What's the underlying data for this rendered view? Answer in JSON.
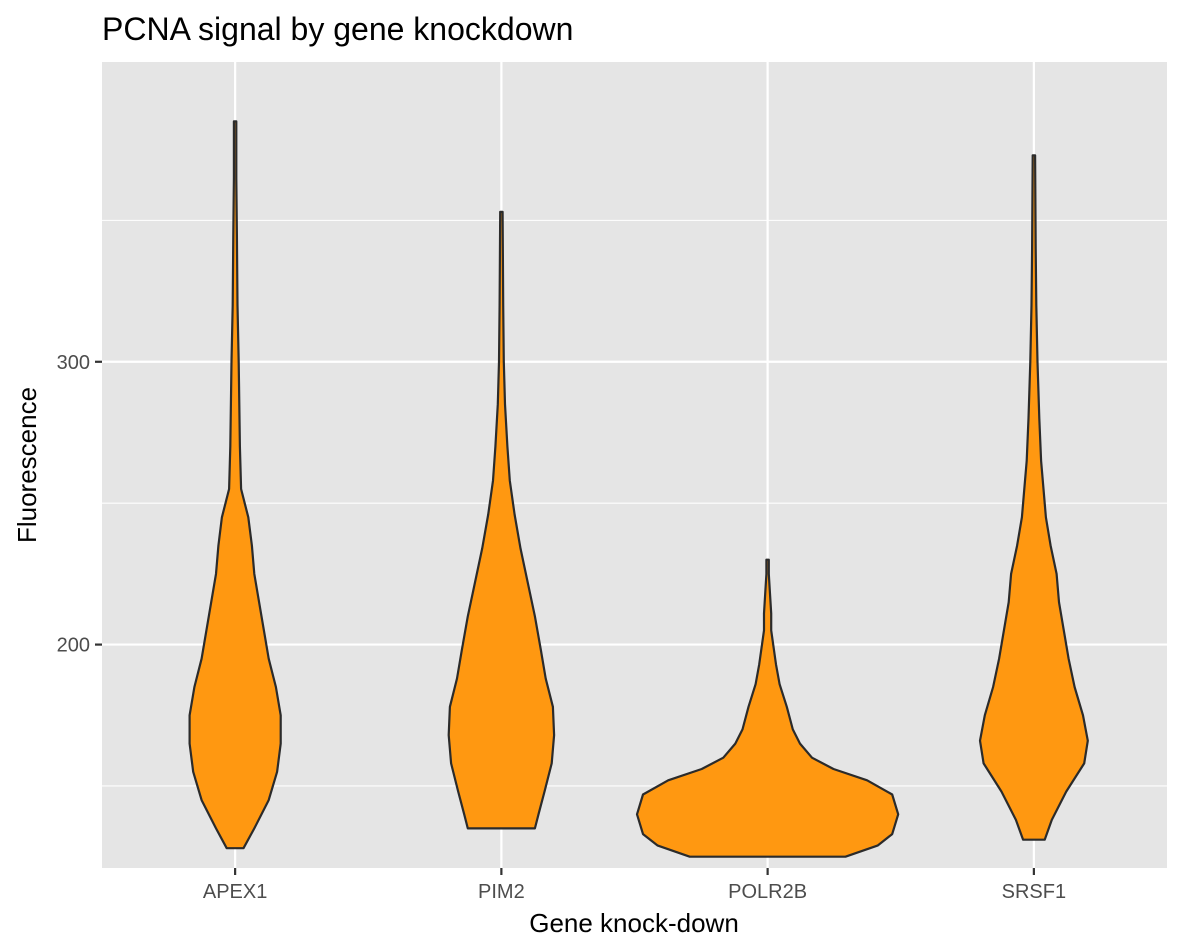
{
  "chart_data": {
    "type": "violin",
    "title": "PCNA signal by gene knockdown",
    "xlabel": "Gene knock-down",
    "ylabel": "Fluorescence",
    "categories": [
      "APEX1",
      "PIM2",
      "POLR2B",
      "SRSF1"
    ],
    "yticks": [
      200,
      300
    ],
    "ylim": [
      121,
      406
    ],
    "grid": true,
    "legend": "none",
    "colors": {
      "fill": "#ff9811",
      "outline": "#2b2b2b",
      "panel": "#e5e5e5",
      "grid": "#ffffff",
      "tick": "#4d4d4d"
    },
    "series": [
      {
        "category": "APEX1",
        "min": 128,
        "max": 385,
        "profile": [
          [
            128,
            0.07
          ],
          [
            135,
            0.16
          ],
          [
            145,
            0.28
          ],
          [
            155,
            0.35
          ],
          [
            165,
            0.38
          ],
          [
            175,
            0.38
          ],
          [
            185,
            0.34
          ],
          [
            195,
            0.28
          ],
          [
            205,
            0.24
          ],
          [
            215,
            0.2
          ],
          [
            225,
            0.16
          ],
          [
            235,
            0.14
          ],
          [
            245,
            0.11
          ],
          [
            255,
            0.05
          ],
          [
            270,
            0.04
          ],
          [
            285,
            0.035
          ],
          [
            300,
            0.03
          ],
          [
            320,
            0.02
          ],
          [
            345,
            0.015
          ],
          [
            365,
            0.01
          ],
          [
            385,
            0.01
          ]
        ]
      },
      {
        "category": "PIM2",
        "min": 135,
        "max": 353,
        "profile": [
          [
            135,
            0.28
          ],
          [
            140,
            0.31
          ],
          [
            148,
            0.36
          ],
          [
            158,
            0.42
          ],
          [
            168,
            0.44
          ],
          [
            178,
            0.43
          ],
          [
            188,
            0.37
          ],
          [
            198,
            0.33
          ],
          [
            210,
            0.28
          ],
          [
            222,
            0.22
          ],
          [
            234,
            0.16
          ],
          [
            246,
            0.11
          ],
          [
            258,
            0.07
          ],
          [
            270,
            0.05
          ],
          [
            285,
            0.03
          ],
          [
            300,
            0.02
          ],
          [
            320,
            0.015
          ],
          [
            353,
            0.01
          ]
        ]
      },
      {
        "category": "POLR2B",
        "min": 125,
        "max": 230,
        "profile": [
          [
            125,
            0.65
          ],
          [
            129,
            0.92
          ],
          [
            133,
            1.04
          ],
          [
            140,
            1.09
          ],
          [
            147,
            1.04
          ],
          [
            152,
            0.83
          ],
          [
            156,
            0.55
          ],
          [
            160,
            0.37
          ],
          [
            165,
            0.27
          ],
          [
            170,
            0.21
          ],
          [
            178,
            0.16
          ],
          [
            186,
            0.1
          ],
          [
            193,
            0.07
          ],
          [
            199,
            0.05
          ],
          [
            205,
            0.03
          ],
          [
            211,
            0.03
          ],
          [
            218,
            0.02
          ],
          [
            225,
            0.01
          ],
          [
            230,
            0.01
          ]
        ]
      },
      {
        "category": "SRSF1",
        "min": 131,
        "max": 373,
        "profile": [
          [
            131,
            0.09
          ],
          [
            138,
            0.15
          ],
          [
            148,
            0.27
          ],
          [
            158,
            0.42
          ],
          [
            166,
            0.45
          ],
          [
            175,
            0.41
          ],
          [
            185,
            0.34
          ],
          [
            195,
            0.29
          ],
          [
            205,
            0.25
          ],
          [
            215,
            0.21
          ],
          [
            225,
            0.19
          ],
          [
            235,
            0.14
          ],
          [
            245,
            0.1
          ],
          [
            255,
            0.08
          ],
          [
            265,
            0.06
          ],
          [
            280,
            0.045
          ],
          [
            300,
            0.03
          ],
          [
            320,
            0.02
          ],
          [
            340,
            0.015
          ],
          [
            373,
            0.01
          ]
        ]
      }
    ]
  }
}
